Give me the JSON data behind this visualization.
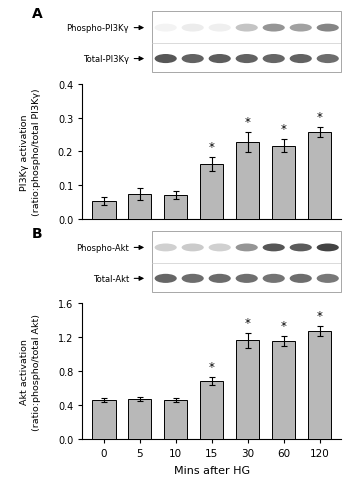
{
  "categories": [
    "0",
    "5",
    "10",
    "15",
    "30",
    "60",
    "120"
  ],
  "pi3k_values": [
    0.055,
    0.075,
    0.072,
    0.163,
    0.228,
    0.217,
    0.257
  ],
  "pi3k_errors": [
    0.012,
    0.018,
    0.012,
    0.02,
    0.03,
    0.02,
    0.015
  ],
  "pi3k_sig": [
    false,
    false,
    false,
    true,
    true,
    true,
    true
  ],
  "akt_values": [
    0.465,
    0.475,
    0.46,
    0.685,
    1.165,
    1.16,
    1.275
  ],
  "akt_errors": [
    0.025,
    0.022,
    0.022,
    0.045,
    0.09,
    0.06,
    0.055
  ],
  "akt_sig": [
    false,
    false,
    false,
    true,
    true,
    true,
    true
  ],
  "pi3k_ylim": [
    0,
    0.4
  ],
  "pi3k_yticks": [
    0.0,
    0.1,
    0.2,
    0.3,
    0.4
  ],
  "akt_ylim": [
    0,
    1.6
  ],
  "akt_yticks": [
    0.0,
    0.4,
    0.8,
    1.2,
    1.6
  ],
  "bar_color": "#b8b8b8",
  "bar_edge_color": "#000000",
  "xlabel": "Mins after HG",
  "pi3k_ylabel": "PI3Kγ activation\n(ratio:phospho/total PI3Kγ)",
  "akt_ylabel": "Akt activation\n(ratio:phospho/total Akt)",
  "panel_A_label": "A",
  "panel_B_label": "B",
  "phospho_pi3k_label": "Phospho-PI3Kγ",
  "total_pi3k_label": "Total-PI3Kγ",
  "phospho_akt_label": "Phospho-Akt",
  "total_akt_label": "Total-Akt",
  "sig_marker": "*",
  "background_color": "#ffffff",
  "pi3k_phospho_intensity": [
    0.05,
    0.08,
    0.07,
    0.25,
    0.45,
    0.4,
    0.52
  ],
  "pi3k_total_intensity": [
    0.75,
    0.7,
    0.72,
    0.7,
    0.68,
    0.7,
    0.65
  ],
  "akt_phospho_intensity": [
    0.2,
    0.22,
    0.2,
    0.45,
    0.72,
    0.7,
    0.8
  ],
  "akt_total_intensity": [
    0.68,
    0.65,
    0.66,
    0.64,
    0.62,
    0.65,
    0.6
  ]
}
